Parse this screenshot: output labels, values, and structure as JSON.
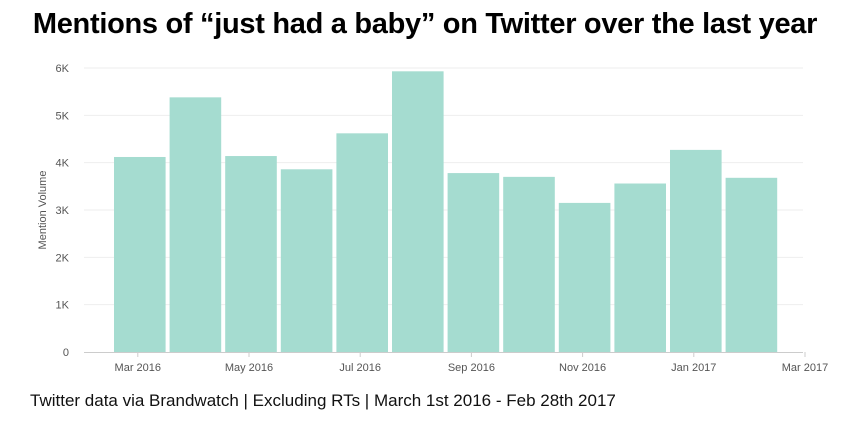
{
  "title": "Mentions of “just had a baby” on Twitter over the last year",
  "footer": "Twitter data via Brandwatch | Excluding RTs | March 1st 2016 - Feb 28th 2017",
  "colors": {
    "bar": "#a5dcd0",
    "grid": "#eeeeee",
    "axis": "#cccccc"
  },
  "chart_data": {
    "type": "bar",
    "title": "Mentions of “just had a baby” on Twitter over the last year",
    "ylabel": "Mention Volume",
    "xlabel": "",
    "ylim": [
      0,
      6000
    ],
    "grid": true,
    "categories": [
      "Mar 2016",
      "Apr 2016",
      "May 2016",
      "Jun 2016",
      "Jul 2016",
      "Aug 2016",
      "Sep 2016",
      "Oct 2016",
      "Nov 2016",
      "Dec 2016",
      "Jan 2017",
      "Feb 2017"
    ],
    "values": [
      4120,
      5380,
      4140,
      3860,
      4620,
      5930,
      3780,
      3700,
      3150,
      3560,
      4270,
      3680
    ],
    "yticks": [
      {
        "value": 0,
        "label": "0"
      },
      {
        "value": 1000,
        "label": "1K"
      },
      {
        "value": 2000,
        "label": "2K"
      },
      {
        "value": 3000,
        "label": "3K"
      },
      {
        "value": 4000,
        "label": "4K"
      },
      {
        "value": 5000,
        "label": "5K"
      },
      {
        "value": 6000,
        "label": "6K"
      }
    ],
    "xticks": [
      "Mar 2016",
      "May 2016",
      "Jul 2016",
      "Sep 2016",
      "Nov 2016",
      "Jan 2017",
      "Mar 2017"
    ]
  }
}
